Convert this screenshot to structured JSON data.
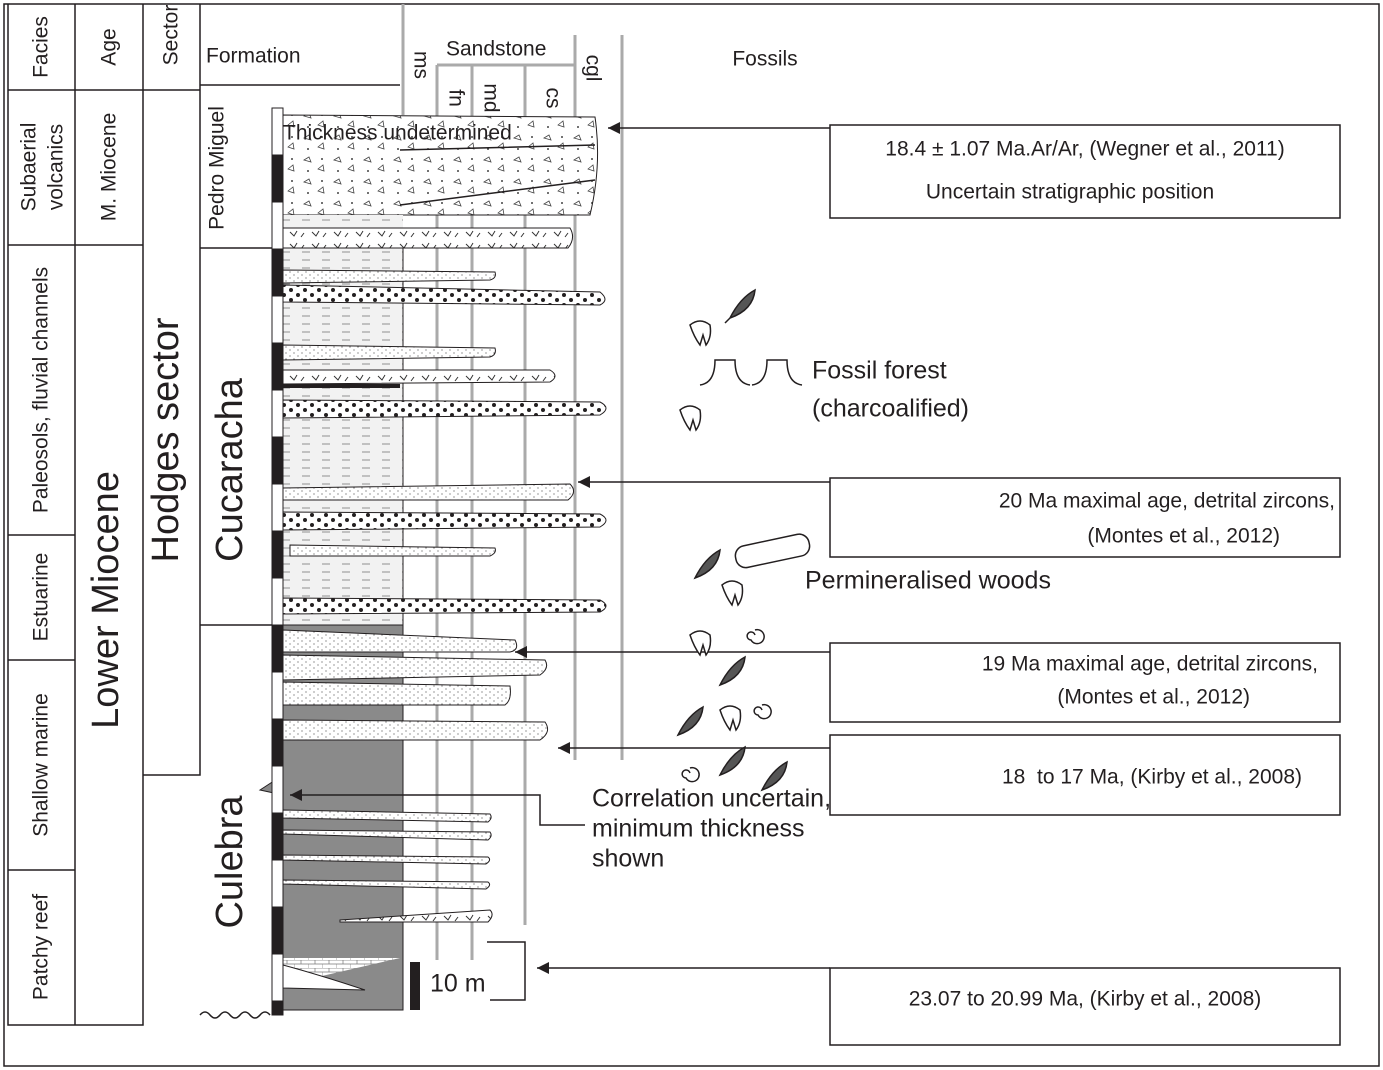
{
  "header": {
    "facies": "Facies",
    "age": "Age",
    "sector": "Sector",
    "formation": "Formation",
    "ms": "ms",
    "sandstone": "Sandstone",
    "fn": "fn",
    "md": "md",
    "cs": "cs",
    "cgl": "cgl",
    "fossils": "Fossils"
  },
  "facies": [
    [
      "Subaerial",
      "volcanics"
    ],
    [
      "Paleosols, fluvial channels"
    ],
    [
      "Estuarine"
    ],
    [
      "Shallow marine"
    ],
    [
      "Patchy reef"
    ]
  ],
  "ages": [
    "M. Miocene",
    "Lower Miocene"
  ],
  "sector": "Hodges sector",
  "formations": [
    "Pedro Miguel",
    "Cucaracha",
    "Culebra"
  ],
  "column_note": "Thickness undetermined",
  "dates": [
    [
      "18.4 ± 1.07 Ma.Ar/Ar, (Wegner et al., 2011)",
      "Uncertain stratigraphic position"
    ],
    [
      "20 Ma maximal age, detrital zircons,",
      "(Montes et al., 2012)"
    ],
    [
      "19 Ma maximal age, detrital zircons,",
      "(Montes et al., 2012)"
    ],
    [
      "18  to 17 Ma, (Kirby et al., 2008)"
    ],
    [
      "23.07 to 20.99 Ma, (Kirby et al., 2008)"
    ]
  ],
  "fossil_labels": [
    [
      "Fossil forest",
      "(charcoalified)"
    ],
    [
      "Permineralised woods"
    ]
  ],
  "correlation_note": [
    "Correlation uncertain,",
    "minimum thickness",
    "shown"
  ],
  "scale": "10 m"
}
